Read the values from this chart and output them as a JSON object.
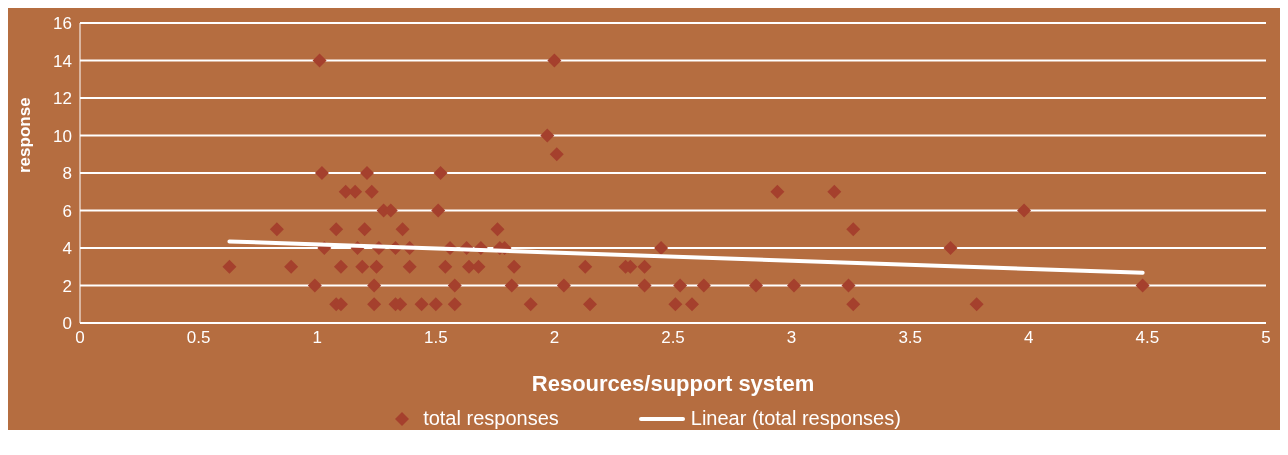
{
  "chart_data": {
    "type": "scatter",
    "xlabel": "Resources/support system",
    "ylabel": "response",
    "xlim": [
      0,
      5
    ],
    "xticks": [
      0,
      0.5,
      1,
      1.5,
      2,
      2.5,
      3,
      3.5,
      4,
      4.5,
      5
    ],
    "ylim": [
      0,
      16
    ],
    "yticks": [
      0,
      2,
      4,
      6,
      8,
      10,
      12,
      14,
      16
    ],
    "grid": "y",
    "legend": "bottom",
    "series": [
      {
        "name": "total responses",
        "color": "#a5402d",
        "marker": "diamond",
        "x": [
          0.63,
          0.83,
          0.89,
          0.99,
          1.01,
          1.02,
          1.03,
          1.08,
          1.08,
          1.1,
          1.1,
          1.12,
          1.16,
          1.17,
          1.19,
          1.2,
          1.21,
          1.23,
          1.24,
          1.24,
          1.25,
          1.26,
          1.28,
          1.31,
          1.33,
          1.33,
          1.35,
          1.36,
          1.39,
          1.39,
          1.44,
          1.5,
          1.51,
          1.52,
          1.54,
          1.56,
          1.58,
          1.58,
          1.63,
          1.64,
          1.68,
          1.69,
          1.76,
          1.77,
          1.79,
          1.82,
          1.83,
          1.9,
          1.97,
          2.0,
          2.01,
          2.04,
          2.13,
          2.15,
          2.3,
          2.32,
          2.38,
          2.38,
          2.45,
          2.51,
          2.53,
          2.58,
          2.63,
          2.85,
          2.94,
          3.01,
          3.18,
          3.24,
          3.26,
          3.26,
          3.67,
          3.78,
          3.98,
          4.48
        ],
        "values": [
          3,
          5,
          3,
          2,
          14,
          8,
          4,
          5,
          1,
          3,
          1,
          7,
          7,
          4,
          3,
          5,
          8,
          7,
          2,
          1,
          3,
          4,
          6,
          6,
          4,
          1,
          1,
          5,
          3,
          4,
          1,
          1,
          6,
          8,
          3,
          4,
          2,
          1,
          4,
          3,
          3,
          4,
          5,
          4,
          4,
          2,
          3,
          1,
          10,
          14,
          9,
          2,
          3,
          1,
          3,
          3,
          3,
          2,
          4,
          1,
          2,
          1,
          2,
          2,
          7,
          2,
          7,
          2,
          5,
          1,
          4,
          1,
          6,
          2
        ]
      },
      {
        "name": "Linear (total responses)",
        "type": "line",
        "marker": "none",
        "color": "#ffffff",
        "x": [
          0.63,
          4.48
        ],
        "values": [
          4.35,
          2.68
        ]
      }
    ]
  }
}
